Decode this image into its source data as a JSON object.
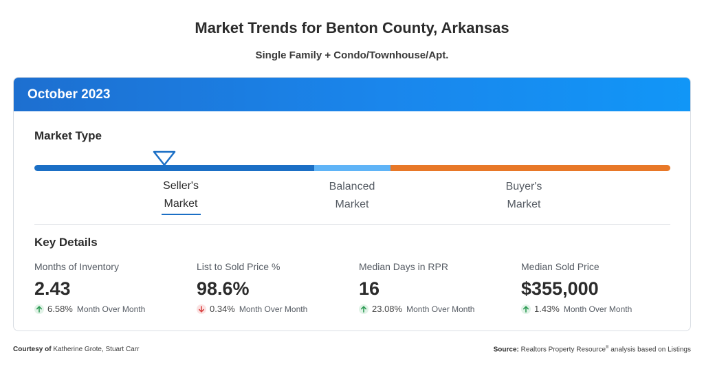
{
  "header": {
    "title": "Market Trends for Benton County, Arkansas",
    "subtitle": "Single Family + Condo/Townhouse/Apt."
  },
  "card": {
    "period": "October 2023",
    "market_type_heading": "Market Type",
    "scale": {
      "seller_line1": "Seller's",
      "seller_line2": "Market",
      "balanced_line1": "Balanced",
      "balanced_line2": "Market",
      "buyer_line1": "Buyer's",
      "buyer_line2": "Market",
      "selected": "Seller's Market",
      "colors": {
        "seller": "#1b6fc5",
        "balanced": "#5fb4f7",
        "buyer": "#e87828"
      }
    },
    "key_details_heading": "Key Details",
    "metrics": [
      {
        "label": "Months of Inventory",
        "value": "2.43",
        "change": "6.58%",
        "direction": "up",
        "period_label": "Month Over Month"
      },
      {
        "label": "List to Sold Price %",
        "value": "98.6%",
        "change": "0.34%",
        "direction": "down",
        "period_label": "Month Over Month"
      },
      {
        "label": "Median Days in RPR",
        "value": "16",
        "change": "23.08%",
        "direction": "up",
        "period_label": "Month Over Month"
      },
      {
        "label": "Median Sold Price",
        "value": "$355,000",
        "change": "1.43%",
        "direction": "up",
        "period_label": "Month Over Month"
      }
    ]
  },
  "footer": {
    "courtesy_label": "Courtesy of",
    "courtesy_names": "Katherine Grote, Stuart Carr",
    "source_label": "Source:",
    "source_text_a": "Realtors Property Resource",
    "source_mark": "®",
    "source_text_b": " analysis based on Listings"
  },
  "colors": {
    "header_blue": "#1a86ec",
    "up_green": "#2e9b55",
    "down_red": "#d94444"
  }
}
